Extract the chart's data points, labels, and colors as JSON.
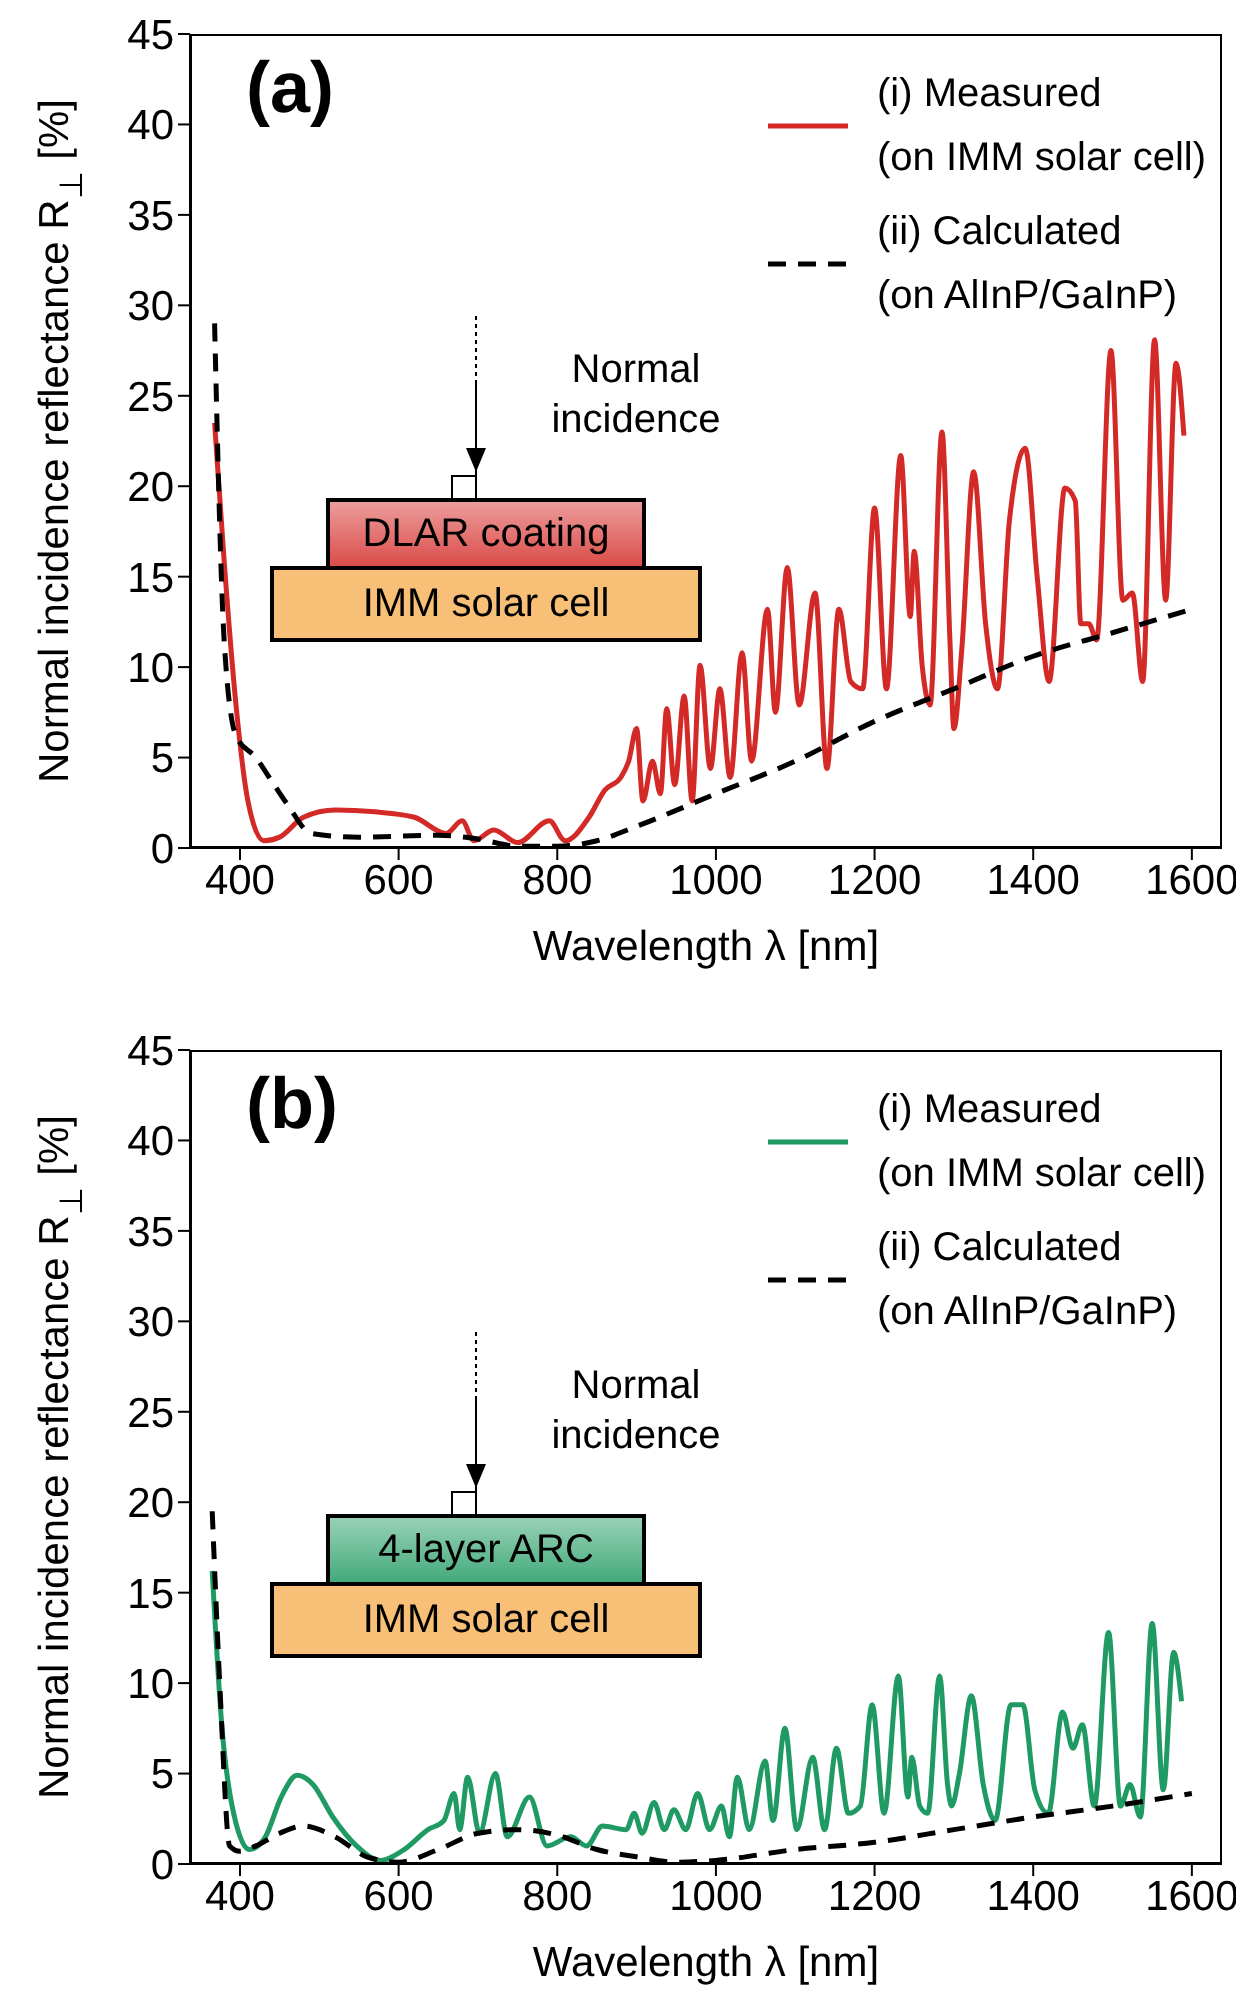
{
  "chart_data": [
    {
      "type": "line",
      "title": "(a)",
      "xlabel": "Wavelength λ [nm]",
      "ylabel": "Normal incidence reflectance R$_{⊥}$ [%]",
      "xlim": [
        337,
        1638
      ],
      "xticks": [
        400,
        600,
        800,
        1000,
        1200,
        1400,
        1600
      ],
      "ylim": [
        0,
        45
      ],
      "yticks": [
        0,
        5,
        10,
        15,
        20,
        25,
        30,
        35,
        40,
        45
      ],
      "legend": "top right",
      "annotations": [
        "Normal incidence",
        "DLAR coating",
        "IMM solar cell"
      ],
      "series": [
        {
          "name": "(i) Measured (on IMM solar cell)",
          "color": "#d42a27",
          "line_style": "solid",
          "x": [
            368,
            380,
            395,
            410,
            430,
            450,
            480,
            520,
            570,
            620,
            660,
            680,
            695,
            720,
            750,
            790,
            810,
            840,
            860,
            880,
            890,
            900,
            908,
            920,
            930,
            938,
            948,
            960,
            970,
            980,
            993,
            1005,
            1018,
            1033,
            1045,
            1065,
            1075,
            1090,
            1105,
            1125,
            1140,
            1155,
            1170,
            1185,
            1200,
            1215,
            1233,
            1245,
            1250,
            1260,
            1270,
            1285,
            1295,
            1300,
            1310,
            1325,
            1340,
            1355,
            1370,
            1390,
            1405,
            1420,
            1440,
            1453,
            1460,
            1470,
            1480,
            1498,
            1513,
            1525,
            1538,
            1553,
            1567,
            1580,
            1590
          ],
          "values": [
            23.5,
            15.9,
            7.9,
            2.6,
            0.4,
            0.6,
            1.7,
            2.1,
            2.0,
            1.7,
            0.8,
            1.5,
            0.4,
            1.0,
            0.3,
            1.5,
            0.4,
            1.7,
            3.2,
            3.9,
            4.8,
            6.6,
            2.6,
            4.8,
            3.0,
            7.7,
            3.5,
            8.4,
            2.6,
            10.1,
            4.4,
            8.8,
            3.9,
            10.8,
            4.8,
            13.2,
            7.5,
            15.5,
            7.9,
            14.1,
            4.4,
            13.2,
            9.2,
            8.8,
            18.8,
            8.8,
            21.7,
            12.8,
            16.4,
            10.1,
            7.9,
            23.0,
            11.5,
            6.6,
            11.0,
            20.8,
            12.4,
            8.8,
            18.1,
            22.1,
            15.0,
            9.2,
            19.9,
            19.2,
            12.4,
            12.4,
            11.5,
            27.5,
            13.7,
            14.1,
            9.2,
            28.1,
            13.7,
            26.8,
            22.8
          ]
        },
        {
          "name": "(ii) Calculated (on AlInP/GaInP)",
          "color": "#000000",
          "line_style": "dashed",
          "x": [
            368,
            380,
            395,
            420,
            440,
            460,
            490,
            550,
            650,
            700,
            750,
            800,
            850,
            900,
            1000,
            1100,
            1200,
            1300,
            1400,
            1500,
            1600
          ],
          "values": [
            29,
            11.5,
            6.2,
            5.0,
            3.7,
            2.4,
            0.8,
            0.6,
            0.7,
            0.5,
            0.1,
            0.1,
            0.4,
            1.2,
            3.0,
            4.8,
            7.0,
            8.8,
            10.6,
            11.9,
            13.2
          ]
        }
      ]
    },
    {
      "type": "line",
      "title": "(b)",
      "xlabel": "Wavelength λ [nm]",
      "ylabel": "Normal incidence reflectance R$_{⊥}$ [%]",
      "xlim": [
        337,
        1638
      ],
      "xticks": [
        400,
        600,
        800,
        1000,
        1200,
        1400,
        1600
      ],
      "ylim": [
        0,
        45
      ],
      "yticks": [
        0,
        5,
        10,
        15,
        20,
        25,
        30,
        35,
        40,
        45
      ],
      "legend": "top right",
      "annotations": [
        "Normal incidence",
        "4-layer ARC",
        "IMM solar cell"
      ],
      "series": [
        {
          "name": "(i) Measured (on IMM solar cell)",
          "color": "#1f9a62",
          "line_style": "solid",
          "x": [
            365,
            377,
            392,
            412,
            432,
            452,
            472,
            492,
            517,
            547,
            577,
            607,
            637,
            657,
            670,
            677,
            687,
            702,
            722,
            737,
            765,
            787,
            817,
            837,
            857,
            887,
            897,
            907,
            922,
            935,
            947,
            962,
            977,
            992,
            1007,
            1017,
            1027,
            1042,
            1062,
            1072,
            1087,
            1102,
            1122,
            1137,
            1152,
            1167,
            1182,
            1197,
            1212,
            1230,
            1242,
            1247,
            1257,
            1267,
            1282,
            1292,
            1297,
            1307,
            1322,
            1337,
            1352,
            1372,
            1387,
            1402,
            1419,
            1437,
            1450,
            1462,
            1477,
            1495,
            1510,
            1522,
            1535,
            1550,
            1564,
            1577,
            1587
          ],
          "values": [
            16.2,
            7.7,
            2.8,
            0.8,
            1.5,
            3.7,
            4.9,
            4.4,
            2.6,
            1.0,
            0.2,
            0.8,
            1.9,
            2.4,
            3.9,
            1.9,
            4.8,
            1.7,
            5.0,
            1.5,
            3.7,
            1.0,
            1.5,
            1.0,
            2.1,
            1.9,
            2.8,
            1.7,
            3.4,
            1.9,
            3.0,
            1.9,
            3.9,
            1.9,
            3.2,
            1.5,
            4.8,
            1.9,
            5.7,
            2.4,
            7.5,
            1.9,
            5.9,
            1.9,
            6.4,
            2.8,
            3.2,
            8.8,
            2.8,
            10.4,
            3.7,
            5.9,
            3.2,
            2.8,
            10.4,
            4.4,
            3.2,
            5.0,
            9.3,
            4.4,
            2.4,
            8.8,
            8.8,
            4.1,
            2.8,
            8.4,
            6.4,
            7.7,
            3.2,
            12.8,
            3.2,
            4.4,
            2.6,
            13.3,
            4.1,
            11.7,
            9.0
          ]
        },
        {
          "name": "(ii) Calculated (on AlInP/GaInP)",
          "color": "#000000",
          "line_style": "dashed",
          "x": [
            365,
            375,
            387,
            400,
            420,
            450,
            480,
            520,
            560,
            600,
            650,
            700,
            750,
            800,
            850,
            900,
            950,
            1000,
            1100,
            1200,
            1300,
            1400,
            1500,
            1600
          ],
          "values": [
            19.5,
            9.5,
            1.0,
            0.7,
            1.0,
            1.7,
            2.1,
            1.5,
            0.4,
            0.1,
            0.8,
            1.7,
            1.9,
            1.6,
            0.8,
            0.4,
            0.1,
            0.2,
            0.8,
            1.2,
            1.9,
            2.6,
            3.2,
            3.9
          ]
        }
      ]
    }
  ]
}
